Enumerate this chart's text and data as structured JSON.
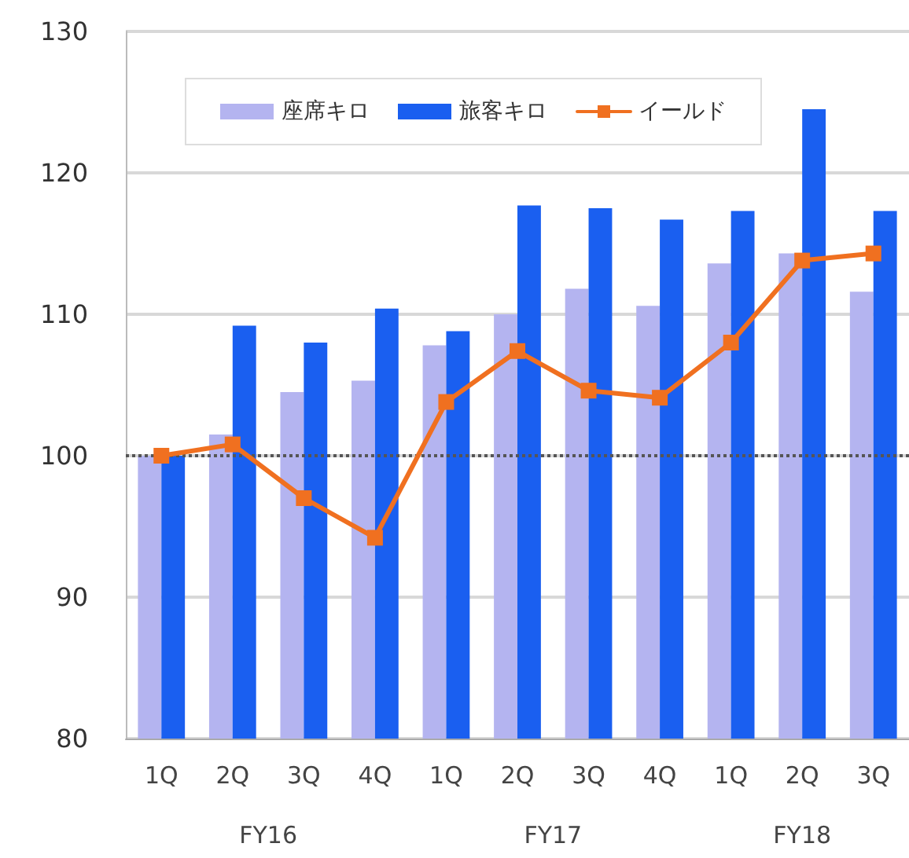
{
  "chart_data": {
    "type": "bar",
    "categories": [
      "1Q",
      "2Q",
      "3Q",
      "4Q",
      "1Q",
      "2Q",
      "3Q",
      "4Q",
      "1Q",
      "2Q",
      "3Q"
    ],
    "series": [
      {
        "name": "座席キロ",
        "color": "#b4b4f0",
        "values": [
          100,
          101.5,
          104.5,
          105.3,
          107.8,
          110,
          111.8,
          110.6,
          113.6,
          114.3,
          111.6
        ]
      },
      {
        "name": "旅客キロ",
        "color": "#1a5ff0",
        "values": [
          100,
          109.2,
          108,
          110.4,
          108.8,
          117.7,
          117.5,
          116.7,
          117.3,
          124.5,
          117.3
        ]
      },
      {
        "name": "イールド",
        "type": "line",
        "color": "#f07020",
        "values": [
          100,
          100.8,
          97,
          94.2,
          103.8,
          107.4,
          104.6,
          104.1,
          108,
          113.8,
          114.3
        ]
      }
    ],
    "annotations": [
      "FY16",
      "FY17",
      "FY18"
    ],
    "ylim": [
      80,
      130
    ],
    "yticks": [
      80,
      90,
      100,
      110,
      120,
      130
    ],
    "ref_lines": [
      {
        "axis": "y",
        "value": 100,
        "color": "#555555",
        "line_style": "dotted"
      }
    ],
    "grid": "y",
    "legend": "top left",
    "marker": "square",
    "line_style": "solid"
  }
}
